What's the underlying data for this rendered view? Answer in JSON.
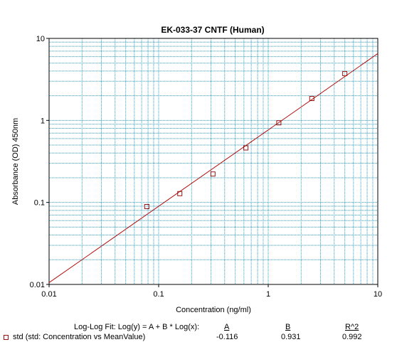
{
  "chart_data": {
    "type": "scatter",
    "title": "EK-033-37 CNTF (Human)",
    "xlabel": "Concentration (ng/ml)",
    "ylabel": "Absorbance (OD) 450nm",
    "xscale": "log",
    "yscale": "log",
    "xlim": [
      0.01,
      10
    ],
    "ylim": [
      0.01,
      10
    ],
    "grid": true,
    "x_ticks": [
      "0.01",
      "0.1",
      "1",
      "10"
    ],
    "y_ticks": [
      "0.01",
      "0.1",
      "1",
      "10"
    ],
    "series": [
      {
        "name": "std (std: Concentration vs MeanValue)",
        "x": [
          0.078,
          0.156,
          0.313,
          0.625,
          1.25,
          2.5,
          5.0
        ],
        "y": [
          0.089,
          0.128,
          0.222,
          0.462,
          0.935,
          1.85,
          3.72
        ]
      }
    ],
    "fit": {
      "equation": "Log-Log Fit: Log(y) = A + B * Log(x):",
      "header_A": "A",
      "header_B": "B",
      "header_R2": "R^2",
      "A": -0.116,
      "B": 0.931,
      "R2": 0.992,
      "A_text": "-0.116",
      "B_text": "0.931",
      "R2_text": "0.992"
    },
    "colors": {
      "grid": "#2aa0c8",
      "fit_line": "#b01010",
      "marker": "#9b1111",
      "axis": "#000000"
    }
  }
}
